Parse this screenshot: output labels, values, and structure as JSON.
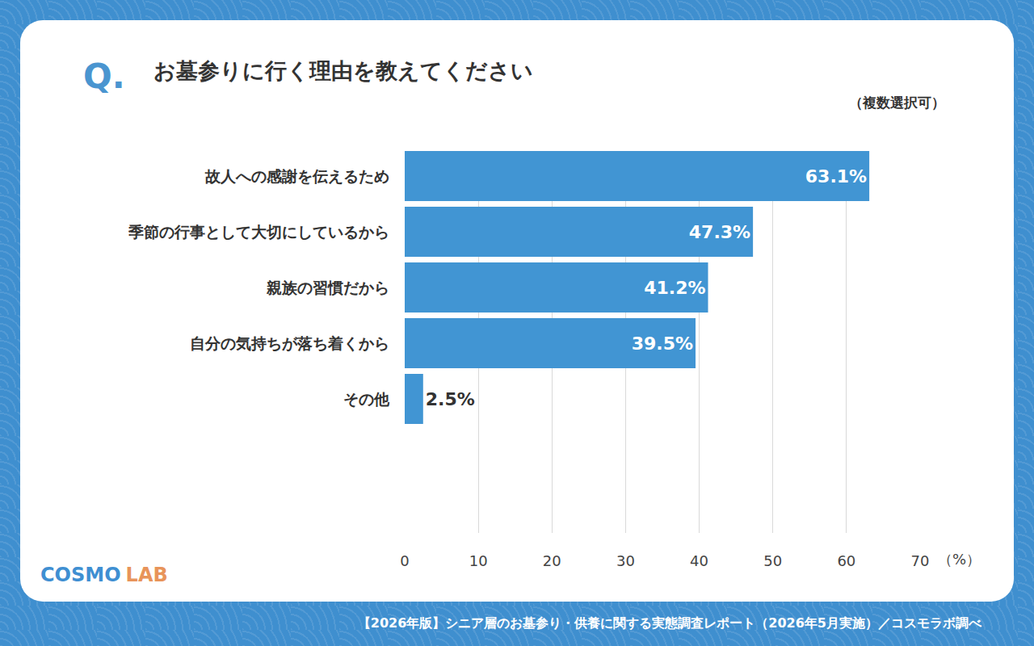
{
  "chart_data": {
    "type": "bar",
    "orientation": "horizontal",
    "question_label": "Q.",
    "title": "お墓参りに行く理由を教えてください",
    "subtitle": "（複数選択可）",
    "x_label": "（%）",
    "source": "【2026年版】シニア層のお墓参り・供養に関する実態調査レポート（2026年5月実施）／コスモラボ調べ",
    "logo": "COSMO LAB",
    "categories": [
      "故人への感謝を伝えるため",
      "季節の行事として大切にしているから",
      "親族の習慣だから",
      "自分の気持ちが落ち着くから",
      "その他"
    ],
    "values": [
      63.1,
      47.3,
      41.2,
      39.5,
      2.5
    ],
    "value_labels": [
      "63.1%",
      "47.3%",
      "41.2%",
      "39.5%",
      "2.5%"
    ],
    "color": "#4195d3",
    "xlim": [
      0,
      70
    ],
    "xticks": [
      0,
      10,
      20,
      30,
      40,
      50,
      60,
      70
    ],
    "grid": true,
    "data_labels": true
  }
}
